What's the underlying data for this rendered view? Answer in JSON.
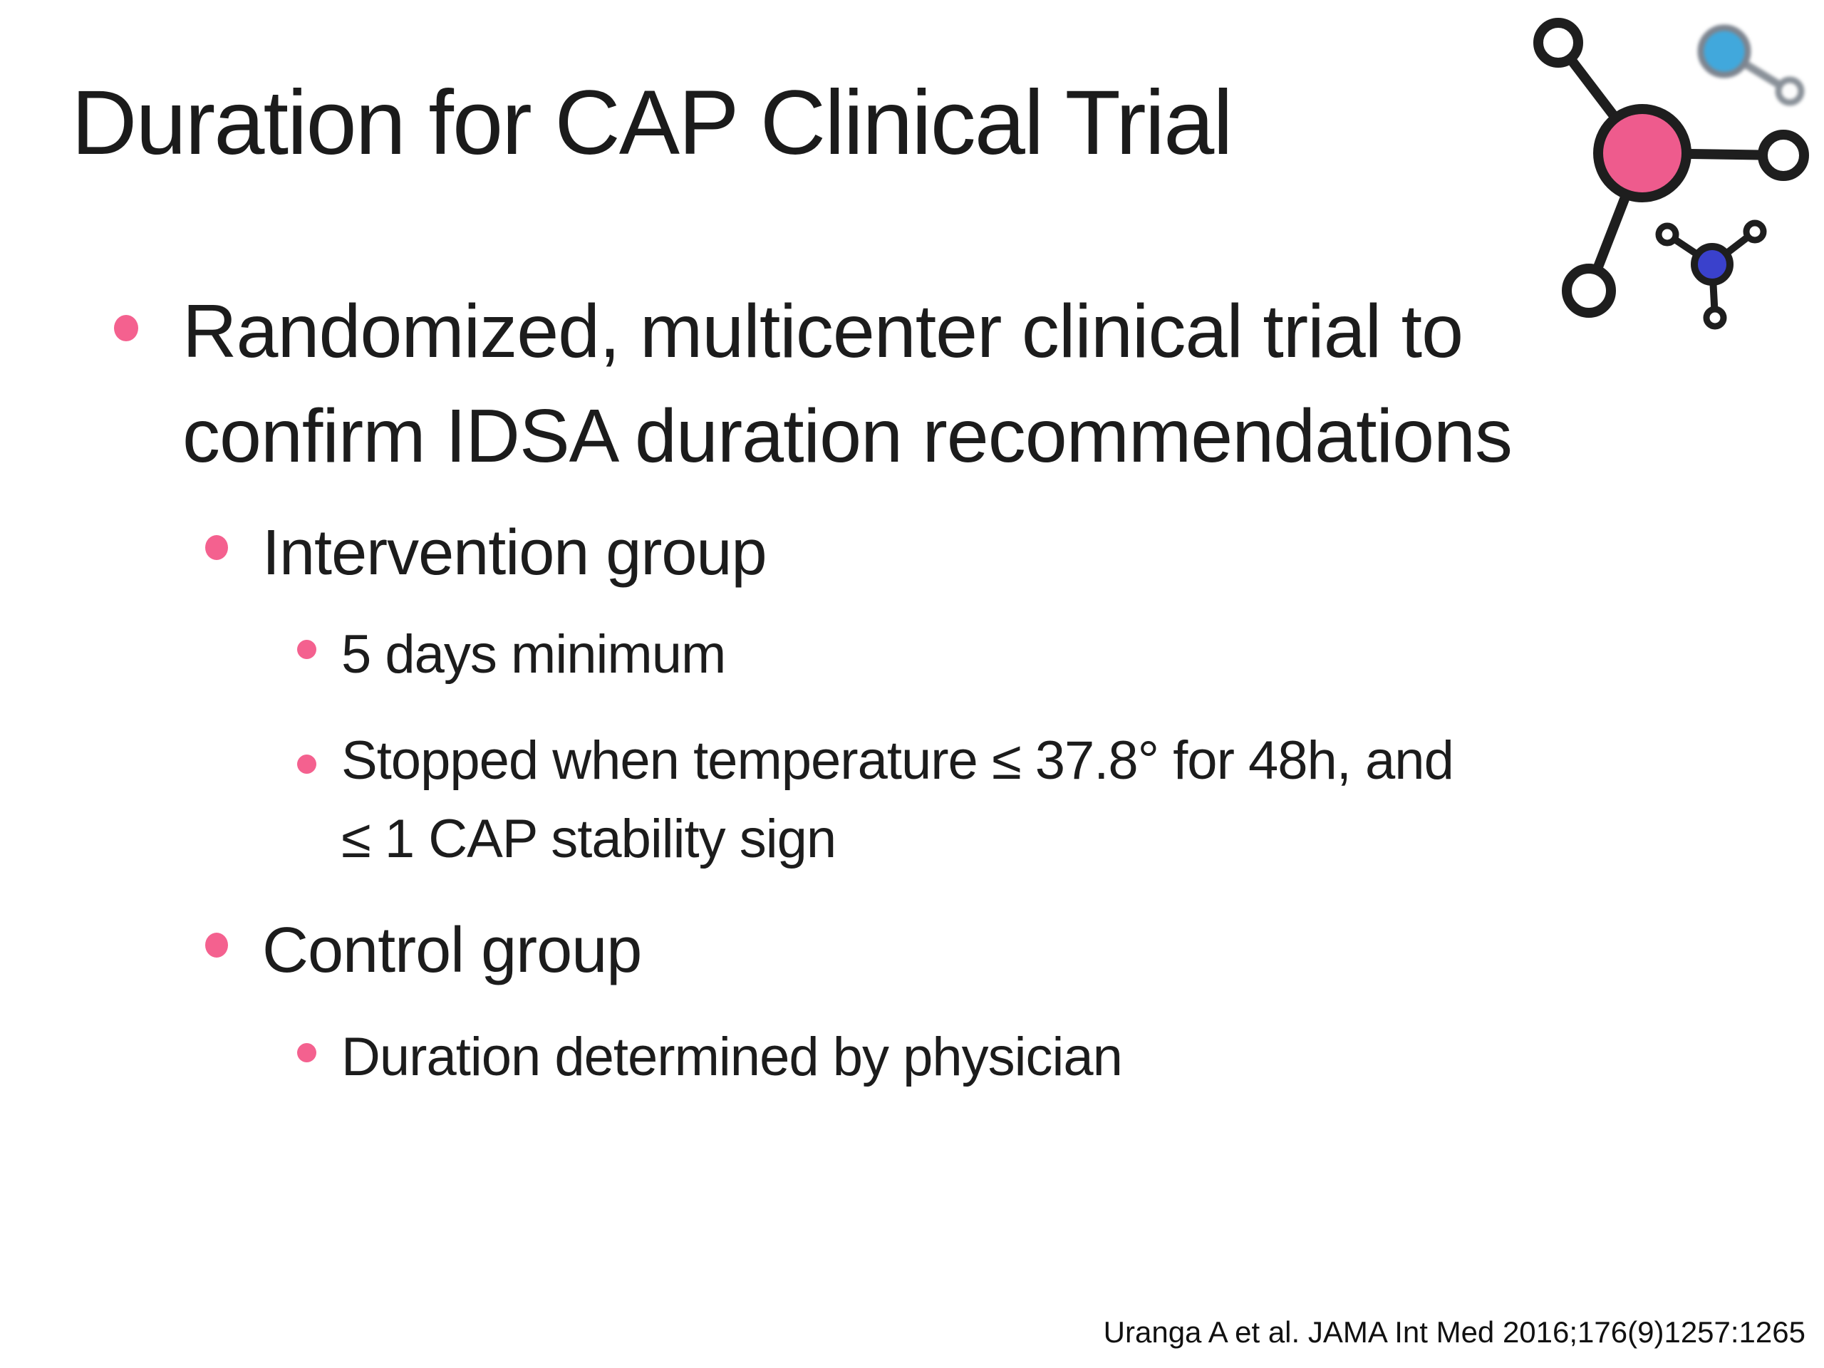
{
  "slide": {
    "title": "Duration for CAP Clinical Trial",
    "bullets": [
      {
        "level": 1,
        "lines": [
          "Randomized, multicenter clinical trial to",
          "confirm IDSA duration recommendations"
        ]
      },
      {
        "level": 2,
        "lines": [
          "Intervention group"
        ]
      },
      {
        "level": 3,
        "lines": [
          "5 days minimum"
        ]
      },
      {
        "level": 3,
        "lines": [
          "Stopped when temperature ≤ 37.8° for 48h, and",
          "≤ 1 CAP stability sign"
        ]
      },
      {
        "level": 2,
        "lines": [
          "Control group"
        ]
      },
      {
        "level": 3,
        "lines": [
          "Duration determined by physician"
        ]
      }
    ],
    "citation": "Uranga A et al. JAMA Int Med 2016;176(9)1257:1265",
    "colors": {
      "bullet_pink": "#F4618F",
      "molecule_pink": "#EE5B8D",
      "molecule_light_blue": "#41A8DC",
      "molecule_navy": "#3A41CC",
      "molecule_gray": "#8A9199",
      "outline_black": "#1E1E1E",
      "text": "#1C1C1C"
    },
    "logo_name": "molecule-logo"
  }
}
